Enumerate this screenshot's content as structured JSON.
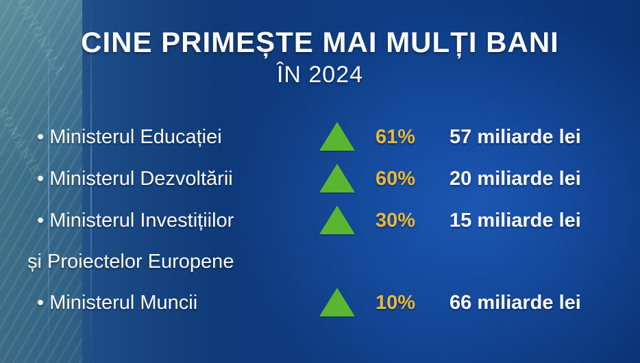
{
  "title": "CINE PRIMEȘTE MAI MULȚI BANI",
  "subtitle": "ÎN 2024",
  "items": [
    {
      "name": "• Ministerul Educației",
      "percent": "61%",
      "amount": "57 miliarde lei"
    },
    {
      "name": "• Ministerul Dezvoltării",
      "percent": "60%",
      "amount": "20 miliarde lei"
    },
    {
      "name": "• Ministerul Investițiilor",
      "name_continued": "și Proiectelor Europene",
      "percent": "30%",
      "amount": "15 miliarde lei"
    },
    {
      "name": "• Ministerul Muncii",
      "percent": "10%",
      "amount": "66 miliarde lei"
    }
  ],
  "icons": {
    "trend": "up-triangle-icon"
  },
  "colors": {
    "accent_green": "#5cb531",
    "percent_yellow": "#e9b83a",
    "background_blue": "#0e3d86"
  }
}
